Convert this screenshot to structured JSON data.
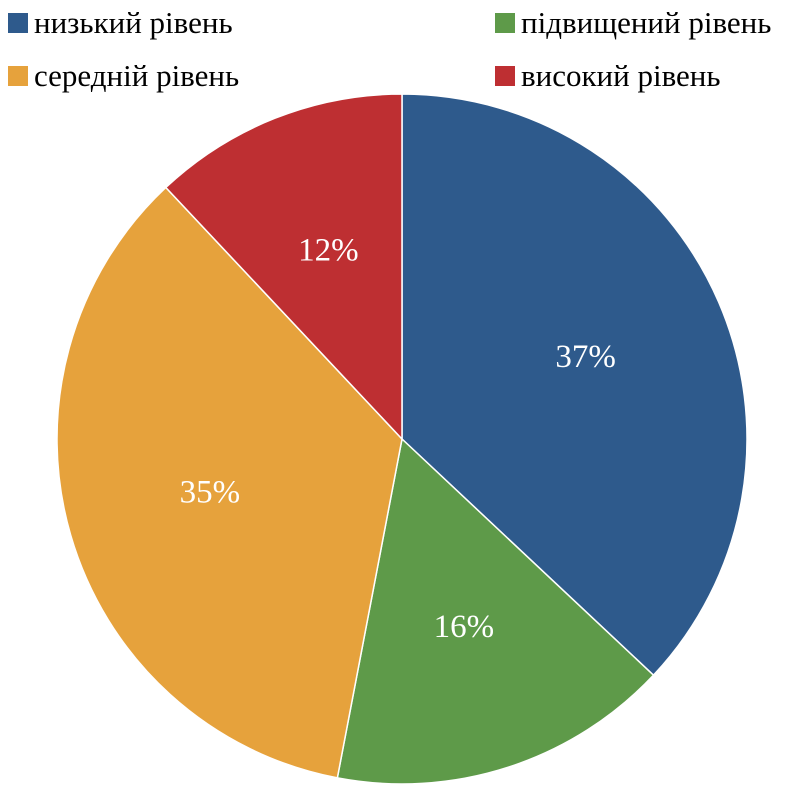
{
  "chart_data": {
    "type": "pie",
    "title": "",
    "start_angle_deg": 0,
    "direction": "clockwise",
    "legend_position": "top",
    "series": [
      {
        "labels": [
          "низький рівень",
          "підвищений рівень",
          "середній рівень",
          "високий рівень"
        ],
        "values": [
          37,
          16,
          35,
          12
        ],
        "display_labels": [
          "37%",
          "16%",
          "35%",
          "12%"
        ],
        "colors": [
          "#2E5A8C",
          "#5E9A49",
          "#E6A23C",
          "#BE2F32"
        ]
      }
    ]
  },
  "legend": {
    "items": [
      {
        "label": "низький рівень",
        "color": "#2E5A8C"
      },
      {
        "label": "підвищений рівень",
        "color": "#5E9A49"
      },
      {
        "label": "середній рівень",
        "color": "#E6A23C"
      },
      {
        "label": "високий рівень",
        "color": "#BE2F32"
      }
    ]
  }
}
